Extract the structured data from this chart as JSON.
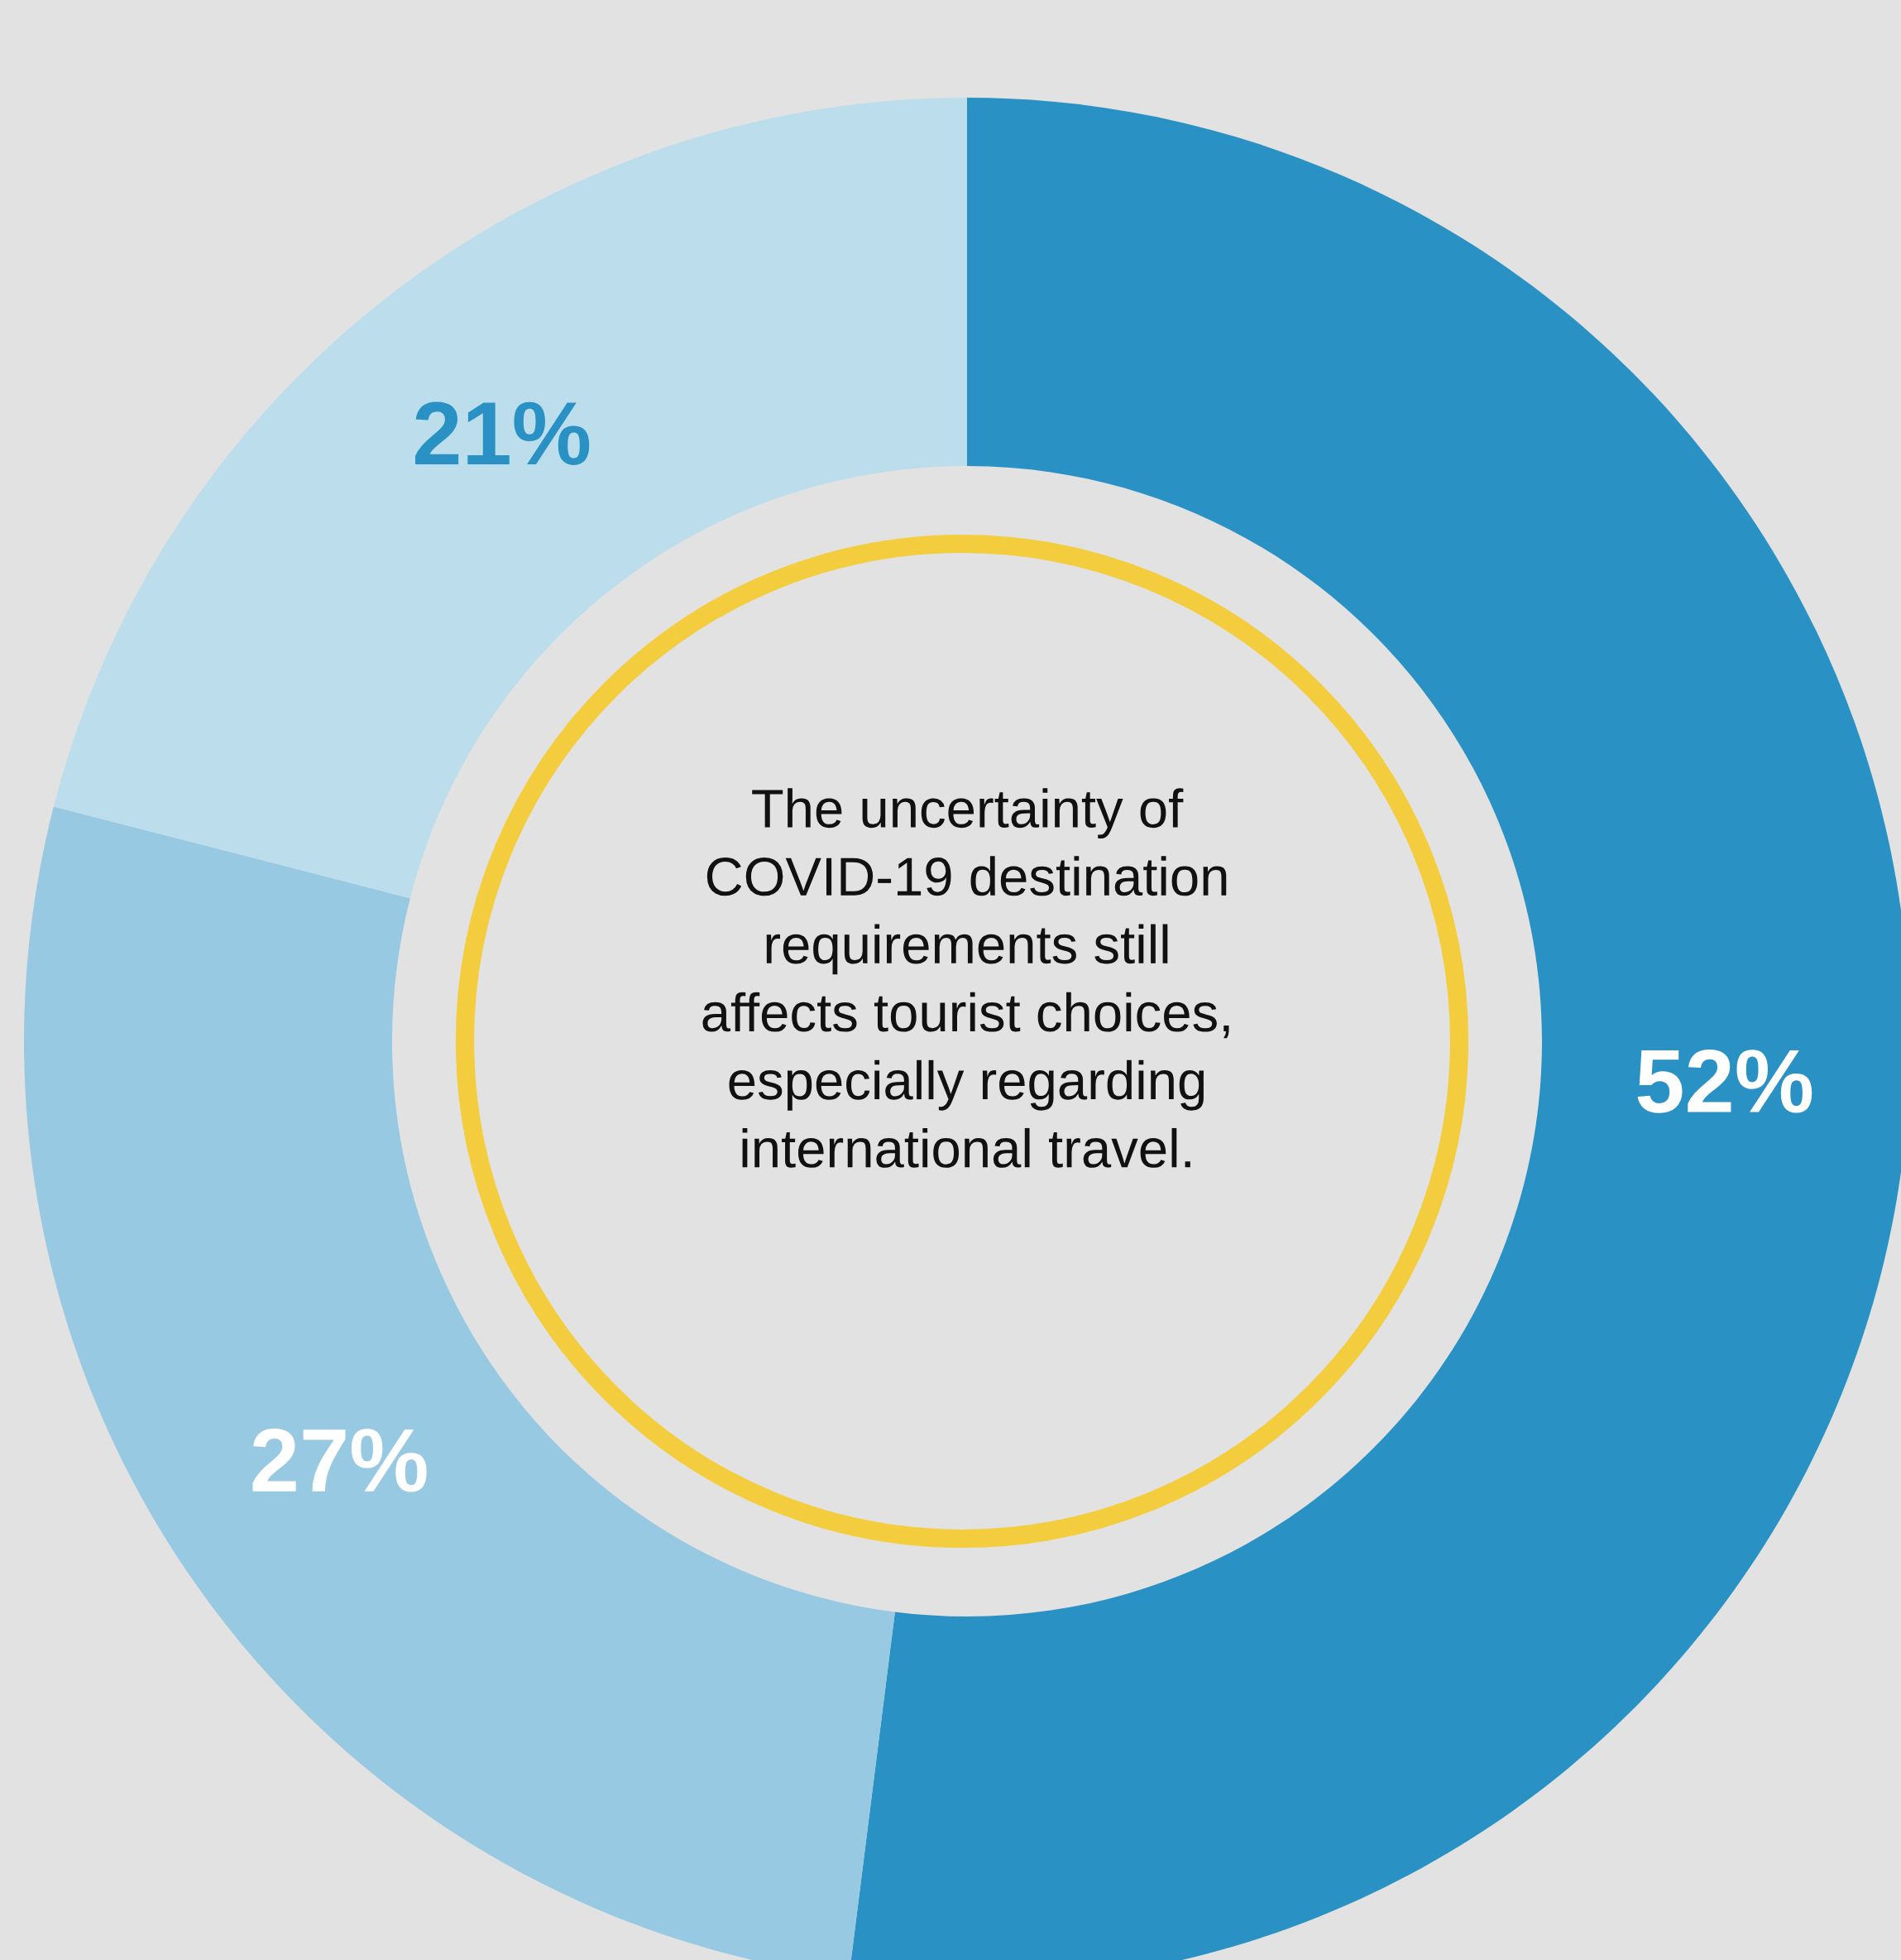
{
  "chart_data": {
    "type": "donut",
    "categories": [
      null,
      null,
      null
    ],
    "values": [
      52,
      27,
      21
    ],
    "colors": [
      "#2991c4",
      "#98c9e2",
      "#bcdeec"
    ],
    "value_labels": [
      "52%",
      "27%",
      "21%"
    ],
    "annotations": [
      "The uncertainty of\nCOVID-19 destination\nrequirements still\naffects tourist choices,\nespecially regarding\ninternational travel."
    ]
  }
}
